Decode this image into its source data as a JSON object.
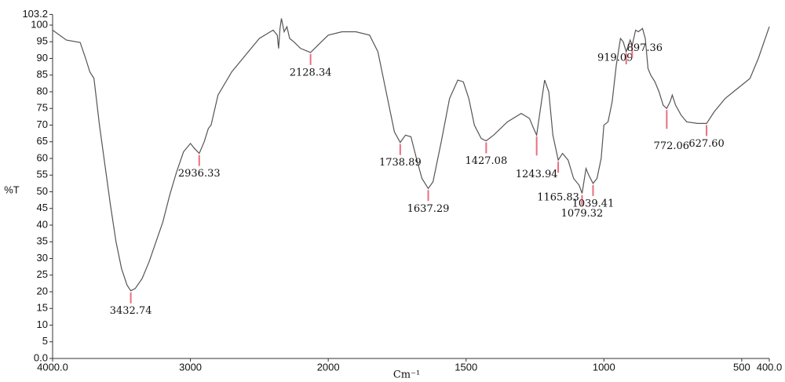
{
  "chart_data": {
    "type": "line",
    "xlabel": "Cm⁻¹",
    "ylabel": "%T",
    "xlim": [
      4000,
      400
    ],
    "ylim": [
      0,
      103.2
    ],
    "xbreak": 2000,
    "xticks": [
      {
        "value": 4000,
        "label": "4000.0"
      },
      3000,
      2000,
      1500,
      1000,
      500,
      {
        "value": 400,
        "label": "400.0"
      }
    ],
    "yticks": [
      {
        "value": 0,
        "label": "0.0"
      },
      5,
      10,
      15,
      20,
      25,
      30,
      35,
      40,
      45,
      50,
      55,
      60,
      65,
      70,
      75,
      80,
      85,
      90,
      95,
      100,
      103.2
    ],
    "color": "#555555",
    "marker_color": "#e8707f",
    "x": [
      4000,
      3900,
      3800,
      3760,
      3730,
      3700,
      3660,
      3620,
      3580,
      3540,
      3500,
      3460,
      3432.74,
      3400,
      3350,
      3300,
      3250,
      3200,
      3150,
      3100,
      3050,
      3000,
      2970,
      2936.33,
      2900,
      2870,
      2850,
      2800,
      2700,
      2600,
      2500,
      2400,
      2370,
      2360,
      2350,
      2340,
      2320,
      2300,
      2280,
      2250,
      2200,
      2128.34,
      2050,
      2000,
      1950,
      1900,
      1850,
      1820,
      1790,
      1760,
      1738.89,
      1720,
      1700,
      1680,
      1660,
      1637.29,
      1620,
      1590,
      1560,
      1530,
      1510,
      1490,
      1470,
      1445,
      1427.08,
      1400,
      1350,
      1300,
      1270,
      1255,
      1243.94,
      1230,
      1215,
      1200,
      1185,
      1165.83,
      1150,
      1130,
      1110,
      1090,
      1079.32,
      1065,
      1055,
      1039.41,
      1025,
      1010,
      1000,
      985,
      970,
      955,
      940,
      930,
      919.09,
      905,
      897.36,
      885,
      875,
      860,
      850,
      840,
      830,
      815,
      800,
      785,
      772.06,
      760,
      752,
      740,
      720,
      700,
      660,
      627.6,
      600,
      560,
      530,
      500,
      470,
      440,
      400
    ],
    "values": [
      98.5,
      95.5,
      94.8,
      90,
      86,
      84,
      70,
      58,
      46,
      35,
      27,
      22,
      20.3,
      21,
      24,
      29,
      35,
      41,
      49,
      56,
      62,
      64.5,
      63,
      61.5,
      65,
      69,
      70,
      79,
      86,
      91,
      96,
      98.5,
      97,
      93,
      99,
      102,
      98,
      99.5,
      96,
      95,
      93,
      91.8,
      95,
      97,
      98,
      98,
      97,
      92,
      80,
      68,
      64.8,
      67,
      66.5,
      60,
      54,
      51,
      53,
      65,
      78,
      83.5,
      83,
      78,
      70,
      66,
      65.3,
      67,
      71,
      73.5,
      72,
      69,
      67,
      75,
      83.5,
      80,
      67,
      59.5,
      61.5,
      59.5,
      54,
      52,
      49.5,
      57,
      55,
      52.5,
      54,
      60,
      70,
      71,
      77,
      88,
      96,
      95,
      92,
      95.5,
      94,
      98.5,
      98,
      99,
      96,
      87,
      85,
      83,
      80,
      76,
      75,
      77,
      79,
      76,
      73,
      71,
      70.5,
      70.5,
      74,
      78,
      80,
      82,
      84,
      90,
      99.5
    ],
    "annotations": [
      {
        "x": 3432.74,
        "label": "3432.74"
      },
      {
        "x": 2936.33,
        "label": "2936.33"
      },
      {
        "x": 2128.34,
        "label": "2128.34"
      },
      {
        "x": 1738.89,
        "label": "1738.89"
      },
      {
        "x": 1637.29,
        "label": "1637.29"
      },
      {
        "x": 1427.08,
        "label": "1427.08"
      },
      {
        "x": 1243.94,
        "label": "1243.94"
      },
      {
        "x": 1165.83,
        "label": "1165.83"
      },
      {
        "x": 1079.32,
        "label": "1079.32"
      },
      {
        "x": 1039.41,
        "label": "1039.41"
      },
      {
        "x": 919.09,
        "label": "919.09"
      },
      {
        "x": 897.36,
        "label": "897.36"
      },
      {
        "x": 772.06,
        "label": "772.06"
      },
      {
        "x": 627.6,
        "label": "627.60"
      }
    ]
  }
}
